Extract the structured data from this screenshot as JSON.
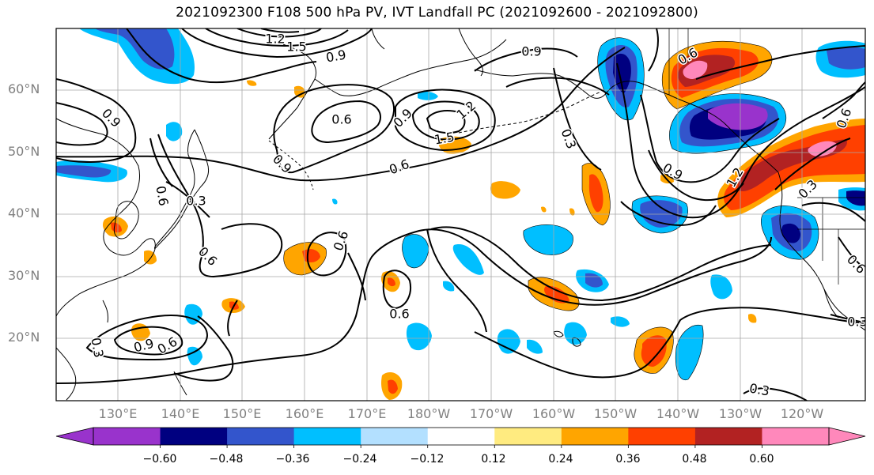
{
  "title": "2021092300 F108 500 hPa PV, IVT Landfall PC (2021092600 - 2021092800)",
  "axes": {
    "lat_labels": [
      "60°N",
      "50°N",
      "40°N",
      "30°N",
      "20°N"
    ],
    "lon_labels": [
      "130°E",
      "140°E",
      "150°E",
      "160°E",
      "170°E",
      "180°W",
      "170°W",
      "160°W",
      "150°W",
      "140°W",
      "130°W",
      "120°W"
    ]
  },
  "colorbar": {
    "ticks": [
      "−0.60",
      "−0.48",
      "−0.36",
      "−0.24",
      "−0.12",
      "0.12",
      "0.24",
      "0.36",
      "0.48",
      "0.60"
    ],
    "colors": [
      "#9933cc",
      "#000080",
      "#3355cc",
      "#00bfff",
      "#b3e0ff",
      "#ffffff",
      "#ffeb80",
      "#ffa500",
      "#ff4000",
      "#b22222",
      "#ff88bb",
      "#ff88bb"
    ]
  },
  "contour_labels": [
    "0.9",
    "1.2",
    "1.5",
    "0.6",
    "0.9",
    "1.2",
    "1.5",
    "0.6",
    "0.3",
    "0.9",
    "1.2",
    "0.3",
    "0.6",
    "0.6",
    "0.6",
    "0.6",
    "0.9",
    "0.6",
    "0.3",
    "0.3",
    "0.6",
    "0.9",
    "0.9",
    "0.3",
    "0.6",
    "0.6",
    "0.9",
    "0.3"
  ]
}
